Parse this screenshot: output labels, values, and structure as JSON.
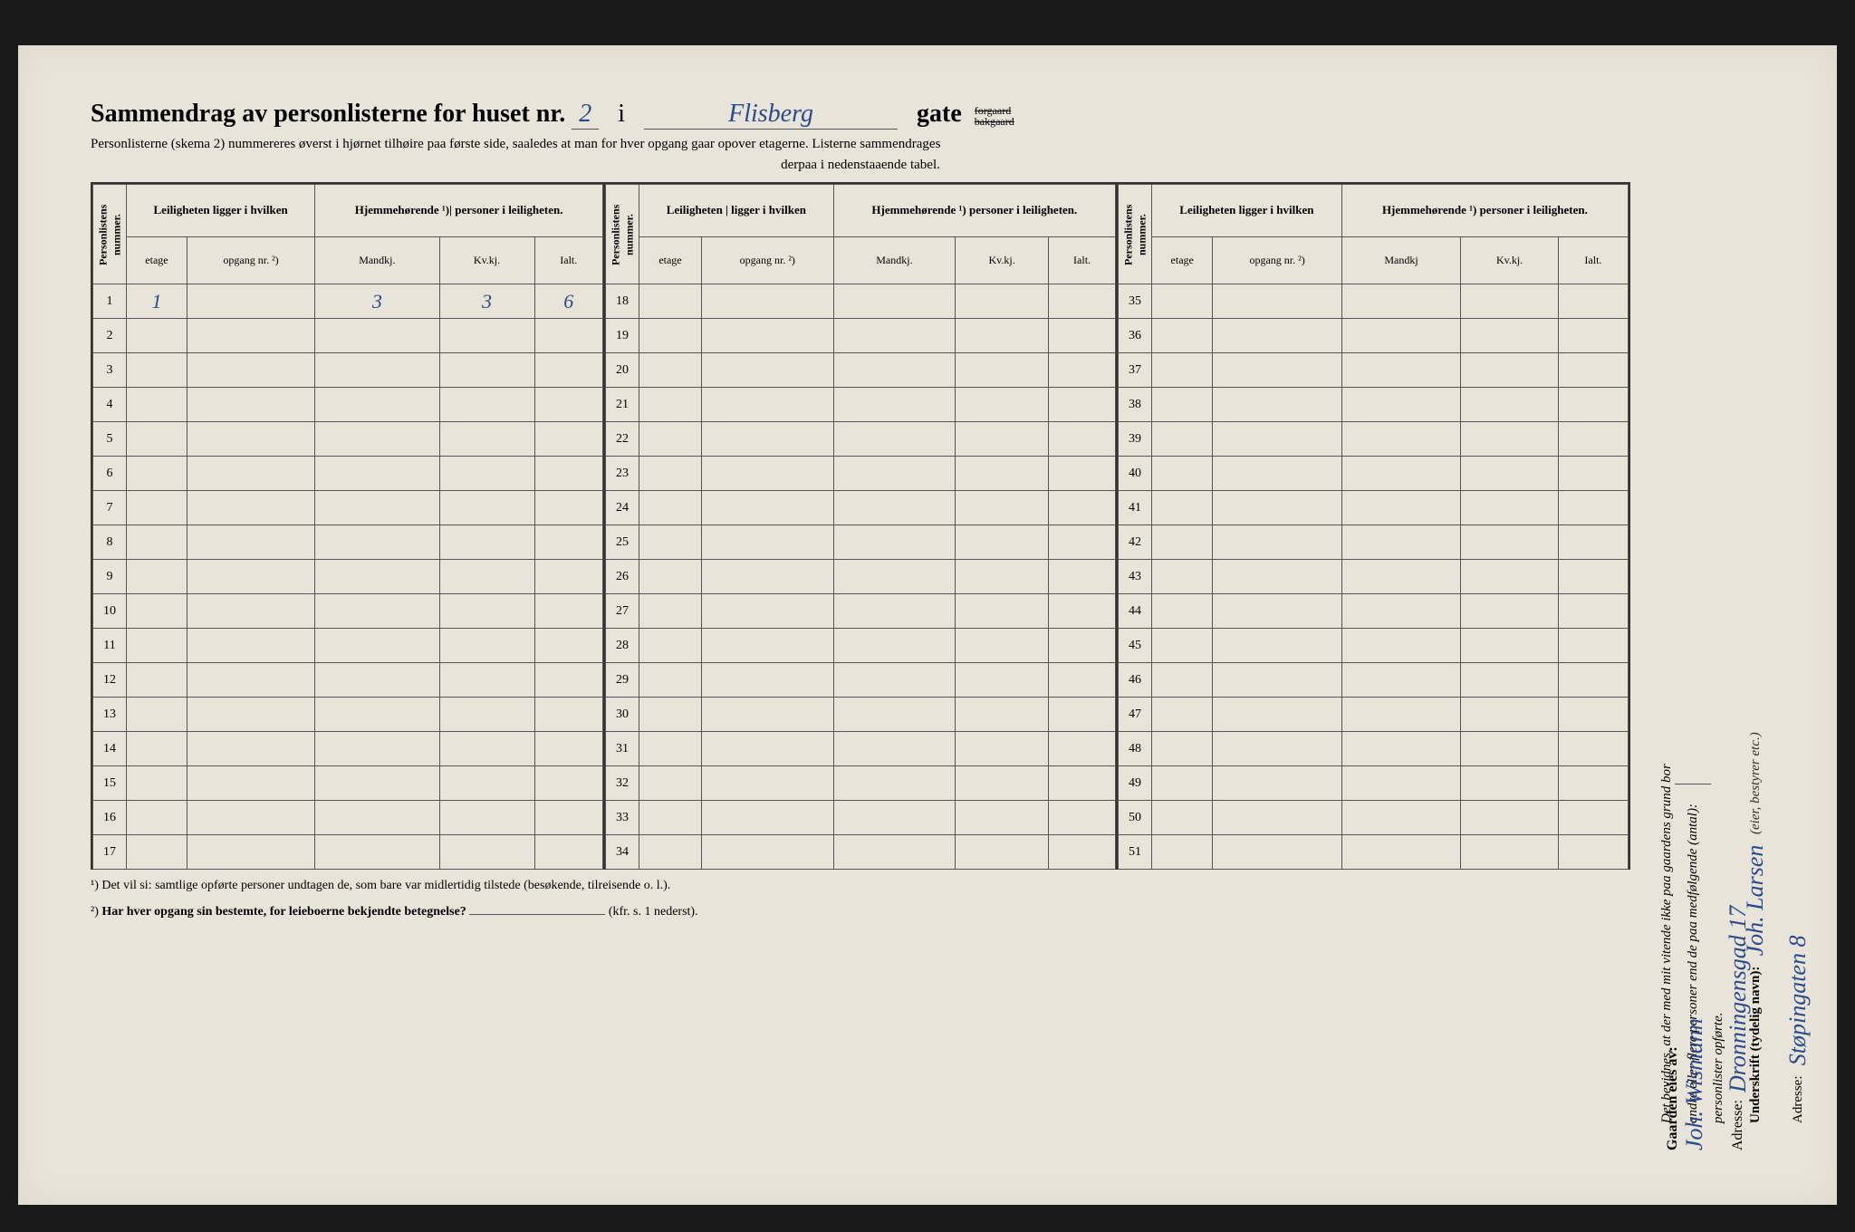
{
  "header": {
    "title_prefix": "Sammendrag av personlisterne for huset nr.",
    "house_number": "2",
    "connector": "i",
    "street_name": "Flisberg",
    "gate_label": "gate",
    "forgaard": "forgaard",
    "bakgaard": "bakgaard",
    "subtitle_line1": "Personlisterne (skema 2) nummereres øverst i hjørnet tilhøire paa første side, saaledes at man for hver opgang gaar opover etagerne.  Listerne sammendrages",
    "subtitle_line2": "derpaa i nedenstaaende tabel."
  },
  "table": {
    "col_personlistens": "Personlistens nummer.",
    "col_leiligheten": "Leiligheten ligger i hvilken",
    "col_leiligheten_alt": "Leiligheten | ligger i hvilken",
    "col_hjemme": "Hjemmehørende ¹) personer i leiligheten.",
    "col_hjemme_alt": "Hjemmehørende ¹)| personer i leiligheten.",
    "sub_etage": "etage",
    "sub_opgang": "opgang nr. ²)",
    "sub_mandkj": "Mandkj.",
    "sub_mandkj_alt": "Mandkj",
    "sub_kvkj": "Kv.kj.",
    "sub_ialt": "Ialt.",
    "rows_1_17": [
      1,
      2,
      3,
      4,
      5,
      6,
      7,
      8,
      9,
      10,
      11,
      12,
      13,
      14,
      15,
      16,
      17
    ],
    "rows_18_34": [
      18,
      19,
      20,
      21,
      22,
      23,
      24,
      25,
      26,
      27,
      28,
      29,
      30,
      31,
      32,
      33,
      34
    ],
    "rows_35_51": [
      35,
      36,
      37,
      38,
      39,
      40,
      41,
      42,
      43,
      44,
      45,
      46,
      47,
      48,
      49,
      50,
      51
    ],
    "row1": {
      "etage": "1",
      "mandkj": "3",
      "kvkj": "3",
      "ialt": "6"
    }
  },
  "footnotes": {
    "fn1": "¹)   Det vil si: samtlige opførte personer undtagen de, som bare var midlertidig tilstede (besøkende, tilreisende o. l.).",
    "fn2_prefix": "²)   ",
    "fn2_bold": "Har hver opgang sin bestemte, for leieboerne bekjendte betegnelse?",
    "fn2_suffix": " (kfr. s. 1 nederst)."
  },
  "side": {
    "attest_line1": "Det bevidnes, at der med mit vitende ikke paa gaardens grund bor",
    "attest_line2": "andre eller flere personer end de paa medfølgende (antal):",
    "attest_line3": "personlister opførte.",
    "underskrift_label": "Underskrift (tydelig navn):",
    "underskrift_value": "Joh. Larsen",
    "bestyrer": "(eier, bestyrer etc.)",
    "adresse_label": "Adresse:",
    "adresse_value": "Støpingaten 8",
    "owner_label": "Gaarden eies av:",
    "owner_value": "Joh. Wismann",
    "owner_adresse_label": "Adresse:",
    "owner_adresse_value": "Dronningensgad 17"
  },
  "colors": {
    "background": "#e8e4d9",
    "ink": "#2a4a8a",
    "border": "#333333"
  }
}
